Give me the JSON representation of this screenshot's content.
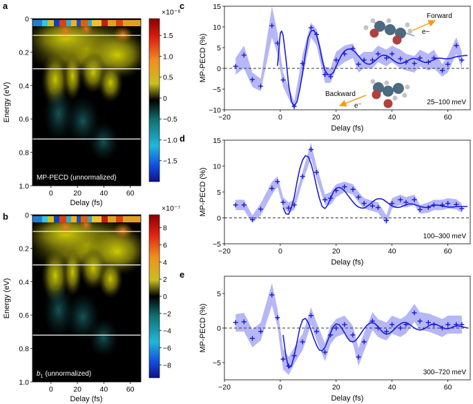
{
  "colors": {
    "fill": "#a8aaf5",
    "line": "#1a1ad6",
    "marker": "#1a1ad6",
    "zero": "#333333",
    "orange": "#f39c12",
    "atom_c": "#4c6a80",
    "atom_o": "#b0413e",
    "atom_h": "#c4c4c4"
  },
  "chart_data": [
    {
      "panel": "a",
      "type": "heatmap",
      "label": "MP-PECD (unnormalized)",
      "xlabel": "Delay (fs)",
      "ylabel": "Energy (eV)",
      "xlim": [
        -14,
        68
      ],
      "ylim": [
        0,
        1.0
      ],
      "xticks": [
        "0",
        "20",
        "40",
        "60"
      ],
      "yticks": [
        "0",
        "0.2",
        "0.4",
        "0.6",
        "0.8",
        "1.0"
      ],
      "energy_lines": [
        0.1,
        0.3,
        0.72
      ],
      "colorbar": {
        "exponent": "×10⁻⁶",
        "ticks": [
          "1.5",
          "1.0",
          "0.5",
          "0",
          "−0.5",
          "−1.0",
          "−1.5"
        ],
        "range": [
          -2.0,
          1.9
        ]
      }
    },
    {
      "panel": "b",
      "type": "heatmap",
      "label_prefix": "b",
      "label_sub": "1",
      "label_rest": "(unnormalized)",
      "xlabel": "Delay (fs)",
      "ylabel": "Energy (eV)",
      "xlim": [
        -14,
        68
      ],
      "ylim": [
        0,
        1.0
      ],
      "xticks": [
        "0",
        "20",
        "40",
        "60"
      ],
      "yticks": [
        "0",
        "0.2",
        "0.4",
        "0.6",
        "0.8",
        "1.0"
      ],
      "energy_lines": [
        0.1,
        0.3,
        0.72
      ],
      "colorbar": {
        "exponent": "×10⁻⁷",
        "ticks": [
          "8",
          "6",
          "4",
          "2",
          "0",
          "−2",
          "−4",
          "−6",
          "−8"
        ],
        "range": [
          -9.5,
          9.5
        ]
      }
    },
    {
      "panel": "c",
      "type": "scatter",
      "xlabel": "Delay (fs)",
      "ylabel": "MP-PECD (%)",
      "xlim": [
        -20,
        68
      ],
      "ylim": [
        -10,
        15
      ],
      "xticks": [
        -20,
        0,
        20,
        40,
        60
      ],
      "yticks": [
        -10,
        -5,
        0,
        5,
        10,
        15
      ],
      "range_label": "25–100 meV",
      "forward_label": "Forward",
      "backward_label": "Backward",
      "electron_label": "e⁻",
      "electron_label_forward": "e−",
      "x": [
        -16,
        -13,
        -10,
        -7,
        -3,
        -1,
        1,
        5,
        8,
        11,
        13,
        16,
        18,
        20,
        23,
        26,
        28,
        30,
        33,
        35,
        38,
        40,
        43,
        45,
        48,
        50,
        53,
        55,
        58,
        60,
        63,
        65
      ],
      "y": [
        0.5,
        3.2,
        -2.7,
        -4.3,
        10.3,
        6.1,
        -2.8,
        -9.2,
        1.2,
        9.8,
        8.2,
        -1.5,
        -2.0,
        2.0,
        3.5,
        4.8,
        1.0,
        2.0,
        2.0,
        3.5,
        2.5,
        3.5,
        2.3,
        1.5,
        1.2,
        2.5,
        1.5,
        2.5,
        -0.5,
        1.0,
        5.5,
        2.0
      ],
      "band_low": [
        -1.5,
        0.0,
        -4.5,
        -5.5,
        7.5,
        3.5,
        -4.5,
        -10.0,
        -2.0,
        7.5,
        5.5,
        -3.5,
        -3.5,
        0.0,
        1.5,
        2.5,
        -1.0,
        0.0,
        0.0,
        1.5,
        0.5,
        1.5,
        0.0,
        -0.5,
        -1.0,
        0.5,
        -0.5,
        0.0,
        -2.0,
        -1.0,
        3.5,
        0.0
      ],
      "band_high": [
        2.5,
        5.5,
        -1.0,
        -2.5,
        15.0,
        8.5,
        -1.0,
        -8.0,
        3.5,
        11.0,
        9.5,
        0.5,
        0.0,
        4.0,
        5.5,
        6.0,
        3.0,
        4.0,
        4.0,
        5.5,
        4.5,
        5.5,
        4.5,
        3.5,
        3.0,
        4.5,
        3.5,
        4.5,
        1.0,
        3.0,
        7.5,
        4.0
      ],
      "fit": [
        [
          -1,
          0.6
        ],
        [
          0,
          8.5
        ],
        [
          0.5,
          9.0
        ],
        [
          1,
          8.0
        ],
        [
          2,
          2.5
        ],
        [
          3,
          -4.0
        ],
        [
          4,
          -8.0
        ],
        [
          5,
          -9.2
        ],
        [
          6,
          -8.0
        ],
        [
          7,
          -5.0
        ],
        [
          8,
          -1.0
        ],
        [
          9,
          3.5
        ],
        [
          10,
          7.5
        ],
        [
          11,
          9.0
        ],
        [
          12,
          9.2
        ],
        [
          13,
          8.0
        ],
        [
          14,
          5.5
        ],
        [
          15,
          2.0
        ],
        [
          16,
          -0.5
        ],
        [
          17,
          -1.5
        ],
        [
          18,
          -1.6
        ],
        [
          19,
          -1.0
        ],
        [
          20,
          0.5
        ],
        [
          21,
          2.0
        ],
        [
          22,
          3.3
        ],
        [
          23,
          4.2
        ],
        [
          24,
          4.6
        ],
        [
          25,
          4.7
        ],
        [
          26,
          4.4
        ],
        [
          27,
          3.8
        ],
        [
          28,
          3.0
        ],
        [
          29,
          2.2
        ],
        [
          30,
          1.5
        ],
        [
          31,
          1.1
        ],
        [
          32,
          1.0
        ],
        [
          33,
          1.3
        ],
        [
          34,
          1.9
        ],
        [
          35,
          2.5
        ],
        [
          36,
          3.0
        ],
        [
          37,
          3.2
        ],
        [
          38,
          3.1
        ],
        [
          39,
          2.7
        ],
        [
          40,
          2.2
        ],
        [
          41,
          1.7
        ],
        [
          42,
          1.3
        ],
        [
          43,
          1.2
        ],
        [
          44,
          1.3
        ],
        [
          45,
          1.6
        ],
        [
          46,
          2.0
        ],
        [
          47,
          2.3
        ],
        [
          48,
          2.4
        ],
        [
          49,
          2.2
        ],
        [
          50,
          1.9
        ],
        [
          51,
          1.6
        ],
        [
          52,
          1.4
        ],
        [
          53,
          1.5
        ],
        [
          54,
          1.8
        ],
        [
          55,
          2.1
        ],
        [
          56,
          2.4
        ],
        [
          57,
          2.5
        ],
        [
          58,
          2.4
        ],
        [
          59,
          2.3
        ],
        [
          60,
          2.3
        ],
        [
          61,
          2.4
        ],
        [
          62,
          2.6
        ],
        [
          63,
          2.8
        ],
        [
          64,
          2.9
        ],
        [
          65,
          3.0
        ],
        [
          66,
          3.1
        ],
        [
          67,
          3.1
        ]
      ]
    },
    {
      "panel": "d",
      "type": "scatter",
      "xlabel": "Delay (fs)",
      "ylabel": "MP-PECD (%)",
      "xlim": [
        -20,
        68
      ],
      "ylim": [
        -5,
        15
      ],
      "xticks": [
        -20,
        0,
        20,
        40,
        60
      ],
      "yticks": [
        -5,
        0,
        5,
        10,
        15
      ],
      "range_label": "100–300 meV",
      "x": [
        -16,
        -13,
        -10,
        -7,
        -3,
        -1,
        1,
        3,
        5,
        8,
        11,
        13,
        16,
        18,
        20,
        23,
        26,
        28,
        30,
        33,
        35,
        38,
        40,
        43,
        45,
        48,
        50,
        53,
        55,
        58,
        60,
        63,
        65
      ],
      "y": [
        2.5,
        2.5,
        -0.3,
        1.7,
        5.7,
        7.0,
        3.0,
        1.9,
        2.5,
        8.0,
        13.2,
        8.8,
        3.5,
        3.8,
        5.3,
        6.0,
        5.5,
        4.0,
        2.8,
        2.3,
        2.0,
        -0.5,
        2.8,
        3.5,
        3.0,
        3.5,
        1.6,
        2.0,
        2.5,
        2.5,
        2.8,
        2.6,
        1.8
      ],
      "band_low": [
        1.5,
        1.5,
        -1.0,
        0.5,
        4.5,
        6.0,
        2.0,
        1.0,
        1.5,
        7.0,
        11.5,
        7.5,
        2.5,
        2.5,
        4.0,
        5.0,
        4.5,
        3.0,
        1.8,
        1.3,
        1.0,
        -1.3,
        1.8,
        2.5,
        2.0,
        2.5,
        0.8,
        1.0,
        1.5,
        1.5,
        1.8,
        1.6,
        1.0
      ],
      "band_high": [
        3.5,
        3.5,
        0.5,
        2.8,
        7.0,
        8.0,
        4.0,
        3.0,
        3.5,
        9.0,
        14.5,
        10.0,
        4.5,
        5.0,
        6.5,
        7.0,
        6.5,
        5.0,
        3.8,
        3.3,
        3.0,
        0.5,
        3.8,
        4.5,
        4.0,
        4.5,
        2.5,
        3.0,
        3.5,
        3.5,
        3.8,
        3.6,
        2.8
      ],
      "fit": [
        [
          1,
          2.0
        ],
        [
          2,
          0.8
        ],
        [
          3,
          0.7
        ],
        [
          4,
          2.0
        ],
        [
          5,
          4.0
        ],
        [
          6,
          7.0
        ],
        [
          7,
          9.5
        ],
        [
          8,
          11.2
        ],
        [
          9,
          12.0
        ],
        [
          10,
          11.8
        ],
        [
          11,
          10.5
        ],
        [
          12,
          8.5
        ],
        [
          13,
          6.0
        ],
        [
          14,
          3.8
        ],
        [
          15,
          2.2
        ],
        [
          16,
          1.8
        ],
        [
          17,
          2.5
        ],
        [
          18,
          3.8
        ],
        [
          19,
          5.0
        ],
        [
          20,
          5.7
        ],
        [
          21,
          5.9
        ],
        [
          22,
          5.7
        ],
        [
          23,
          5.2
        ],
        [
          24,
          4.5
        ],
        [
          25,
          3.8
        ],
        [
          26,
          3.1
        ],
        [
          27,
          2.5
        ],
        [
          28,
          2.1
        ],
        [
          29,
          1.9
        ],
        [
          30,
          1.9
        ],
        [
          31,
          2.2
        ],
        [
          32,
          2.6
        ],
        [
          33,
          3.1
        ],
        [
          34,
          3.5
        ],
        [
          35,
          3.7
        ],
        [
          36,
          3.7
        ],
        [
          37,
          3.5
        ],
        [
          38,
          3.1
        ],
        [
          39,
          2.7
        ],
        [
          40,
          2.3
        ],
        [
          41,
          2.1
        ],
        [
          42,
          2.0
        ],
        [
          43,
          2.1
        ],
        [
          44,
          2.3
        ],
        [
          45,
          2.5
        ],
        [
          46,
          2.7
        ],
        [
          47,
          2.7
        ],
        [
          48,
          2.6
        ],
        [
          49,
          2.4
        ],
        [
          50,
          2.2
        ],
        [
          51,
          2.1
        ],
        [
          52,
          2.0
        ],
        [
          53,
          2.1
        ],
        [
          54,
          2.3
        ],
        [
          55,
          2.4
        ],
        [
          56,
          2.5
        ],
        [
          57,
          2.4
        ],
        [
          58,
          2.3
        ],
        [
          59,
          2.2
        ],
        [
          60,
          2.1
        ],
        [
          61,
          2.1
        ],
        [
          62,
          2.1
        ],
        [
          63,
          2.2
        ],
        [
          64,
          2.2
        ],
        [
          65,
          2.2
        ],
        [
          66,
          2.2
        ],
        [
          67,
          2.2
        ]
      ]
    },
    {
      "panel": "e",
      "type": "scatter",
      "xlabel": "Delay (fs)",
      "ylabel": "MP-PECD (%)",
      "xlim": [
        -20,
        68
      ],
      "ylim": [
        -7.5,
        7.5
      ],
      "xticks": [
        -20,
        0,
        20,
        40,
        60
      ],
      "yticks": [
        -5,
        0,
        5
      ],
      "range_label": "300–720 meV",
      "x": [
        -16,
        -13,
        -10,
        -7,
        -3,
        -1,
        1,
        3,
        5,
        8,
        11,
        13,
        16,
        18,
        20,
        23,
        26,
        28,
        30,
        33,
        35,
        38,
        40,
        43,
        45,
        48,
        50,
        53,
        55,
        58,
        60,
        63,
        65
      ],
      "y": [
        0.8,
        0.9,
        -1.5,
        -0.5,
        4.8,
        1.5,
        -4.5,
        -5.5,
        -4.0,
        -2.0,
        1.8,
        -0.5,
        -3.5,
        -1.0,
        0.0,
        0.5,
        -1.0,
        -4.2,
        -2.0,
        1.0,
        0.0,
        -0.5,
        0.5,
        0.0,
        0.5,
        2.2,
        1.0,
        0.8,
        0.5,
        0.0,
        0.5,
        0.5,
        0.5
      ],
      "band_low": [
        -0.5,
        -0.5,
        -2.8,
        -1.8,
        3.3,
        0.2,
        -6.0,
        -6.8,
        -5.2,
        -3.2,
        0.5,
        -1.8,
        -4.8,
        -2.3,
        -1.3,
        -0.8,
        -2.3,
        -5.5,
        -3.3,
        -0.3,
        -1.3,
        -1.8,
        -0.8,
        -1.3,
        -0.8,
        0.9,
        -0.3,
        -0.5,
        -0.8,
        -1.3,
        -0.8,
        -0.8,
        -0.8
      ],
      "band_high": [
        2.0,
        2.2,
        -0.2,
        0.8,
        6.5,
        2.8,
        -3.0,
        -4.2,
        -2.8,
        -0.8,
        3.0,
        0.8,
        -2.2,
        0.3,
        1.3,
        1.8,
        0.3,
        -2.9,
        -0.7,
        2.3,
        1.3,
        0.8,
        1.8,
        1.3,
        1.8,
        3.5,
        2.3,
        2.1,
        1.8,
        1.3,
        1.8,
        1.8,
        1.8
      ],
      "fit": [
        [
          1,
          -1.0
        ],
        [
          2,
          -4.0
        ],
        [
          3,
          -5.8
        ],
        [
          4,
          -5.5
        ],
        [
          5,
          -4.0
        ],
        [
          6,
          -2.0
        ],
        [
          7,
          0.0
        ],
        [
          8,
          1.2
        ],
        [
          9,
          1.4
        ],
        [
          10,
          0.8
        ],
        [
          11,
          -0.3
        ],
        [
          12,
          -1.5
        ],
        [
          13,
          -2.5
        ],
        [
          14,
          -3.2
        ],
        [
          15,
          -3.3
        ],
        [
          16,
          -2.8
        ],
        [
          17,
          -1.8
        ],
        [
          18,
          -0.7
        ],
        [
          19,
          0.2
        ],
        [
          20,
          0.6
        ],
        [
          21,
          0.5
        ],
        [
          22,
          0.0
        ],
        [
          23,
          -0.7
        ],
        [
          24,
          -1.4
        ],
        [
          25,
          -1.9
        ],
        [
          26,
          -2.0
        ],
        [
          27,
          -1.8
        ],
        [
          28,
          -1.3
        ],
        [
          29,
          -0.7
        ],
        [
          30,
          -0.1
        ],
        [
          31,
          0.4
        ],
        [
          32,
          0.7
        ],
        [
          33,
          0.8
        ],
        [
          34,
          0.6
        ],
        [
          35,
          0.2
        ],
        [
          36,
          -0.3
        ],
        [
          37,
          -0.7
        ],
        [
          38,
          -0.9
        ],
        [
          39,
          -0.8
        ],
        [
          40,
          -0.5
        ],
        [
          41,
          -0.1
        ],
        [
          42,
          0.3
        ],
        [
          43,
          0.6
        ],
        [
          44,
          0.8
        ],
        [
          45,
          0.8
        ],
        [
          46,
          0.6
        ],
        [
          47,
          0.3
        ],
        [
          48,
          0.0
        ],
        [
          49,
          -0.2
        ],
        [
          50,
          -0.3
        ],
        [
          51,
          -0.2
        ],
        [
          52,
          0.0
        ],
        [
          53,
          0.3
        ],
        [
          54,
          0.5
        ],
        [
          55,
          0.6
        ],
        [
          56,
          0.5
        ],
        [
          57,
          0.3
        ],
        [
          58,
          0.1
        ],
        [
          59,
          -0.1
        ],
        [
          60,
          -0.1
        ],
        [
          61,
          0.0
        ],
        [
          62,
          0.2
        ],
        [
          63,
          0.3
        ],
        [
          64,
          0.3
        ],
        [
          65,
          0.2
        ],
        [
          66,
          0.1
        ],
        [
          67,
          0.0
        ]
      ]
    }
  ]
}
